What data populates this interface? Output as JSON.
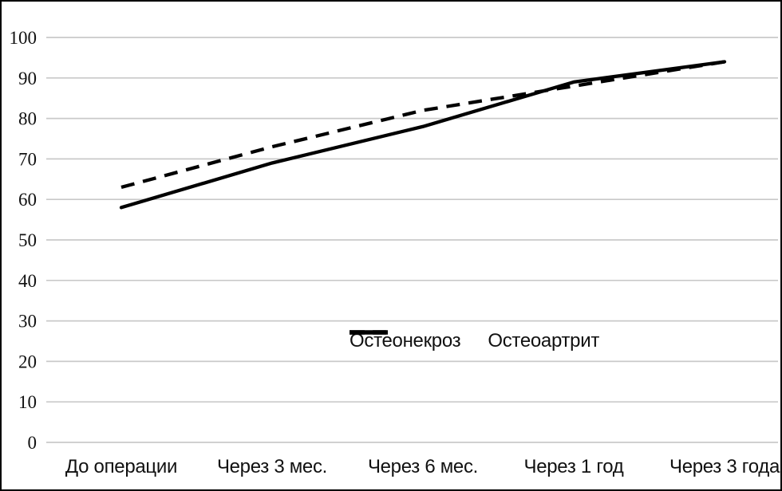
{
  "chart_data": {
    "type": "line",
    "title": "",
    "xlabel": "",
    "ylabel": "",
    "categories": [
      "До операции",
      "Через 3 мес.",
      "Через 6 мес.",
      "Через 1 год",
      "Через 3 года"
    ],
    "series": [
      {
        "name": "Остеонекроз",
        "style": "dashed",
        "values": [
          63,
          73,
          82,
          88,
          94
        ]
      },
      {
        "name": "Остеоартрит",
        "style": "solid",
        "values": [
          58,
          69,
          78,
          89,
          94
        ]
      }
    ],
    "ylim": [
      0,
      100
    ],
    "y_ticks": [
      "0",
      "10",
      "20",
      "30",
      "40",
      "50",
      "60",
      "70",
      "80",
      "90",
      "100"
    ],
    "grid": "horizontal-only",
    "legend_position": "inside-plot-lower-center",
    "line_color": "#000000",
    "gridline_color": "#c9c9c9",
    "background_color": "#ffffff",
    "frame_color": "#000000"
  }
}
